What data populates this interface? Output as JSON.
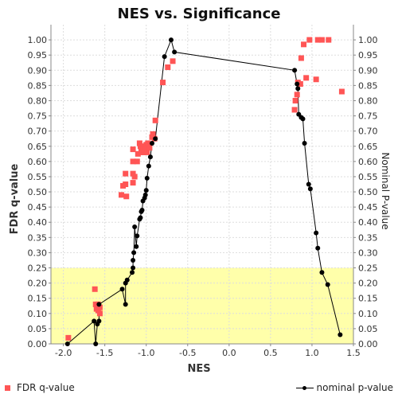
{
  "chart_data": {
    "type": "scatter",
    "title": "NES vs. Significance",
    "xlabel": "NES",
    "ylabel_left": "FDR q-value",
    "ylabel_right": "Nominal P-value",
    "xlim": [
      -2.15,
      1.5
    ],
    "ylim": [
      0,
      1.05
    ],
    "x_ticks": [
      "-2.0",
      "-1.5",
      "-1.0",
      "-0.5",
      "0.0",
      "0.5",
      "1.0",
      "1.5"
    ],
    "y_ticks": [
      "0.00",
      "0.05",
      "0.10",
      "0.15",
      "0.20",
      "0.25",
      "0.30",
      "0.35",
      "0.40",
      "0.45",
      "0.50",
      "0.55",
      "0.60",
      "0.65",
      "0.70",
      "0.75",
      "0.80",
      "0.85",
      "0.90",
      "0.95",
      "1.00"
    ],
    "highlight_band": {
      "y_from": 0,
      "y_to": 0.25,
      "color": "#ffffaa"
    },
    "grid": true,
    "series": [
      {
        "name": "FDR q-value",
        "kind": "points",
        "marker": "square",
        "color": "#ff5555",
        "points": [
          [
            -1.94,
            0.02
          ],
          [
            -1.62,
            0.18
          ],
          [
            -1.61,
            0.13
          ],
          [
            -1.6,
            0.115
          ],
          [
            -1.58,
            0.11
          ],
          [
            -1.58,
            0.13
          ],
          [
            -1.56,
            0.12
          ],
          [
            -1.56,
            0.1
          ],
          [
            -1.3,
            0.49
          ],
          [
            -1.28,
            0.52
          ],
          [
            -1.25,
            0.56
          ],
          [
            -1.25,
            0.525
          ],
          [
            -1.24,
            0.485
          ],
          [
            -1.16,
            0.64
          ],
          [
            -1.16,
            0.6
          ],
          [
            -1.16,
            0.56
          ],
          [
            -1.16,
            0.53
          ],
          [
            -1.14,
            0.55
          ],
          [
            -1.11,
            0.6
          ],
          [
            -1.1,
            0.625
          ],
          [
            -1.08,
            0.66
          ],
          [
            -1.07,
            0.65
          ],
          [
            -1.06,
            0.64
          ],
          [
            -1.05,
            0.63
          ],
          [
            -1.04,
            0.65
          ],
          [
            -1.04,
            0.64
          ],
          [
            -1.03,
            0.63
          ],
          [
            -1.02,
            0.64
          ],
          [
            -1.0,
            0.655
          ],
          [
            -0.99,
            0.63
          ],
          [
            -0.98,
            0.66
          ],
          [
            -0.96,
            0.645
          ],
          [
            -0.93,
            0.68
          ],
          [
            -0.92,
            0.69
          ],
          [
            -0.9,
            0.675
          ],
          [
            -0.89,
            0.735
          ],
          [
            -0.8,
            0.86
          ],
          [
            -0.74,
            0.91
          ],
          [
            -0.68,
            0.93
          ],
          [
            0.79,
            0.77
          ],
          [
            0.8,
            0.8
          ],
          [
            0.82,
            0.82
          ],
          [
            0.83,
            0.86
          ],
          [
            0.86,
            0.855
          ],
          [
            0.87,
            0.94
          ],
          [
            0.9,
            0.985
          ],
          [
            0.93,
            0.875
          ],
          [
            0.97,
            1.0
          ],
          [
            1.05,
            0.87
          ],
          [
            1.07,
            1.0
          ],
          [
            1.12,
            1.0
          ],
          [
            1.2,
            1.0
          ],
          [
            1.36,
            0.83
          ]
        ]
      },
      {
        "name": "nominal p-value",
        "kind": "line",
        "marker": "circle",
        "color": "#000000",
        "points": [
          [
            -1.95,
            0.0
          ],
          [
            -1.63,
            0.075
          ],
          [
            -1.61,
            0.0
          ],
          [
            -1.59,
            0.065
          ],
          [
            -1.57,
            0.075
          ],
          [
            -1.57,
            0.13
          ],
          [
            -1.29,
            0.18
          ],
          [
            -1.25,
            0.13
          ],
          [
            -1.25,
            0.2
          ],
          [
            -1.23,
            0.21
          ],
          [
            -1.17,
            0.235
          ],
          [
            -1.16,
            0.25
          ],
          [
            -1.16,
            0.275
          ],
          [
            -1.15,
            0.3
          ],
          [
            -1.14,
            0.385
          ],
          [
            -1.12,
            0.32
          ],
          [
            -1.11,
            0.355
          ],
          [
            -1.08,
            0.41
          ],
          [
            -1.07,
            0.415
          ],
          [
            -1.06,
            0.435
          ],
          [
            -1.05,
            0.44
          ],
          [
            -1.04,
            0.47
          ],
          [
            -1.02,
            0.48
          ],
          [
            -1.01,
            0.49
          ],
          [
            -1.0,
            0.505
          ],
          [
            -0.99,
            0.545
          ],
          [
            -0.97,
            0.585
          ],
          [
            -0.95,
            0.615
          ],
          [
            -0.93,
            0.66
          ],
          [
            -0.89,
            0.675
          ],
          [
            -0.78,
            0.945
          ],
          [
            -0.7,
            1.0
          ],
          [
            -0.66,
            0.96
          ],
          [
            0.79,
            0.9
          ],
          [
            0.82,
            0.855
          ],
          [
            0.83,
            0.84
          ],
          [
            0.84,
            0.755
          ],
          [
            0.87,
            0.745
          ],
          [
            0.89,
            0.74
          ],
          [
            0.91,
            0.66
          ],
          [
            0.96,
            0.525
          ],
          [
            0.98,
            0.51
          ],
          [
            1.05,
            0.365
          ],
          [
            1.07,
            0.315
          ],
          [
            1.12,
            0.235
          ],
          [
            1.19,
            0.195
          ],
          [
            1.34,
            0.03
          ]
        ]
      }
    ],
    "legend": [
      {
        "label": "FDR q-value",
        "position": "bottom-left"
      },
      {
        "label": "nominal p-value",
        "position": "bottom-right"
      }
    ]
  }
}
